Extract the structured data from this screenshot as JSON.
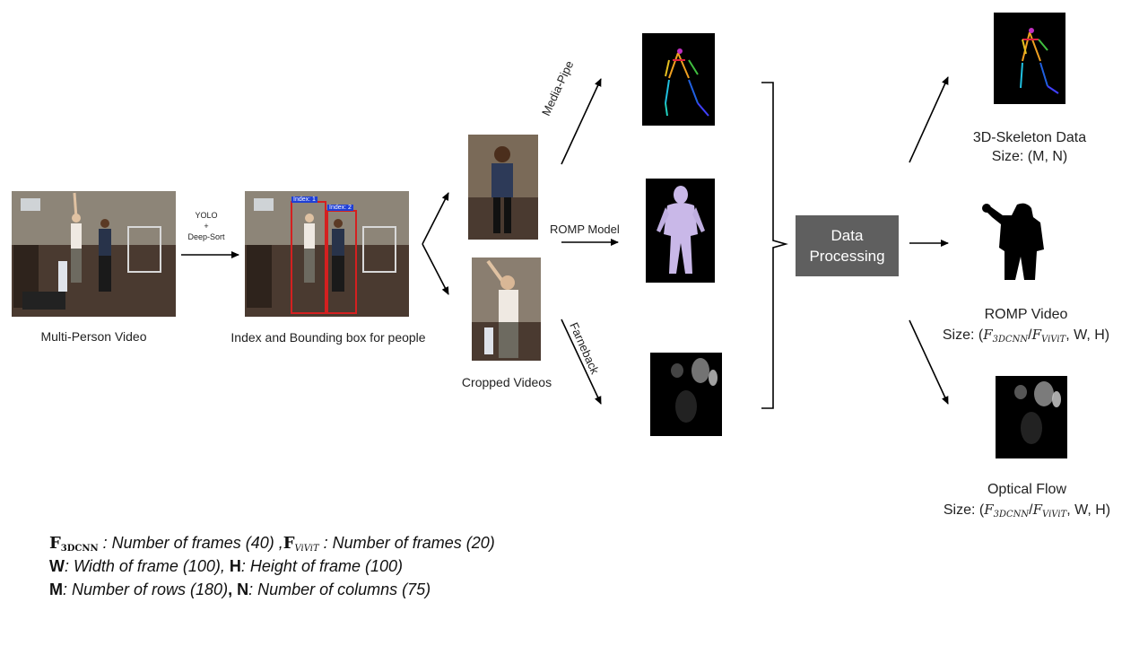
{
  "nodes": {
    "input_video": "Multi-Person Video",
    "detection_method_1": "YOLO",
    "detection_plus": "+",
    "detection_method_2": "Deep-Sort",
    "tracked_video": "Index and Bounding box for people",
    "bbox_label_1": "Index: 1",
    "bbox_label_2": "Index: 2",
    "cropped": "Cropped Videos",
    "branch_mediapipe": "Media-Pipe",
    "branch_romp": "ROMP Model",
    "branch_farneback": "Farneback",
    "processing": "Data Processing"
  },
  "outputs": {
    "skeleton_title": "3D-Skeleton Data",
    "skeleton_size": "Size: (M, N)",
    "romp_title": "ROMP Video",
    "romp_size_prefix": "Size: (",
    "f3dcnn": "F",
    "f3dcnn_sub": "3DCNN",
    "slash": "/",
    "fvivit": "F",
    "fvivit_sub": "ViViT",
    "size_suffix": ", W, H)",
    "flow_title": "Optical Flow",
    "flow_size_prefix": "Size: ("
  },
  "legend": {
    "line1_sym_a": "F",
    "line1_sub_a": "3DCNN",
    "line1_text_a": " : Number of frames (40) ,",
    "line1_sym_b": "F",
    "line1_sub_b": "ViViT",
    "line1_text_b": " : Number of frames (20)",
    "line2_sym_a": "W",
    "line2_text_a": ": Width of frame  (100), ",
    "line2_sym_b": "H",
    "line2_text_b": ": Height of frame  (100)",
    "line3_sym_a": "M",
    "line3_text_a": ": Number of rows  (180)",
    "line3_comma": ", ",
    "line3_sym_b": "N",
    "line3_text_b": ": Number of columns (75)"
  },
  "colors": {
    "arrow": "#000000",
    "processing_box": "#5f5f5f",
    "bbox": "#d42020",
    "bbox_tag": "#1f3fd6"
  }
}
